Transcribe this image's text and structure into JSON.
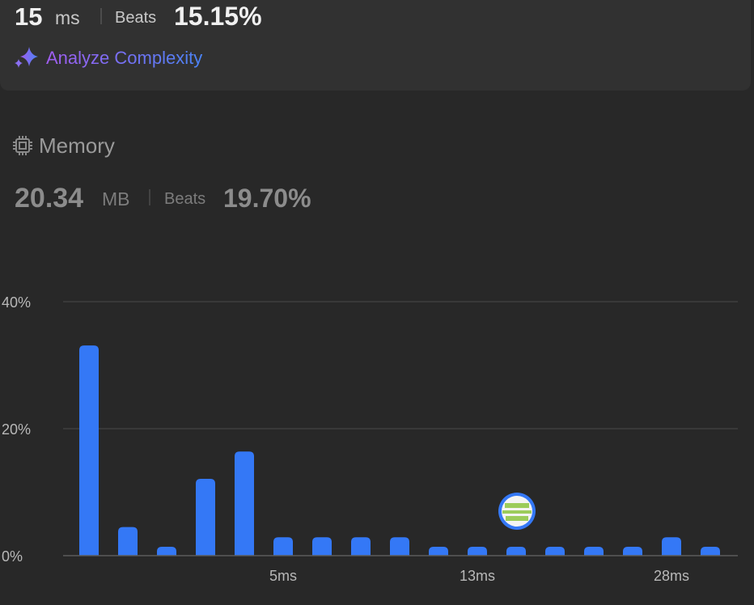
{
  "runtime": {
    "value": "15",
    "unit": "ms",
    "beats_label": "Beats",
    "beats": "15.15%"
  },
  "analyze": "Analyze Complexity",
  "memory": {
    "title": "Memory",
    "value": "20.34",
    "unit": "MB",
    "beats_label": "Beats",
    "beats": "19.70%"
  },
  "chart_data": {
    "type": "bar",
    "categories": [
      null,
      null,
      null,
      null,
      null,
      "5ms",
      null,
      null,
      null,
      null,
      "13ms",
      null,
      null,
      null,
      null,
      "28ms",
      null
    ],
    "values": [
      33.1,
      4.5,
      1.4,
      12.1,
      16.4,
      2.9,
      2.9,
      2.9,
      2.9,
      1.4,
      1.4,
      1.4,
      1.4,
      1.4,
      1.4,
      2.9,
      1.4
    ],
    "color": "#3478f6",
    "ylim": [
      0,
      40
    ],
    "yticks": [
      {
        "value": 0,
        "label": "0%"
      },
      {
        "value": 20,
        "label": "20%"
      },
      {
        "value": 40,
        "label": "40%"
      }
    ],
    "grid": true
  }
}
